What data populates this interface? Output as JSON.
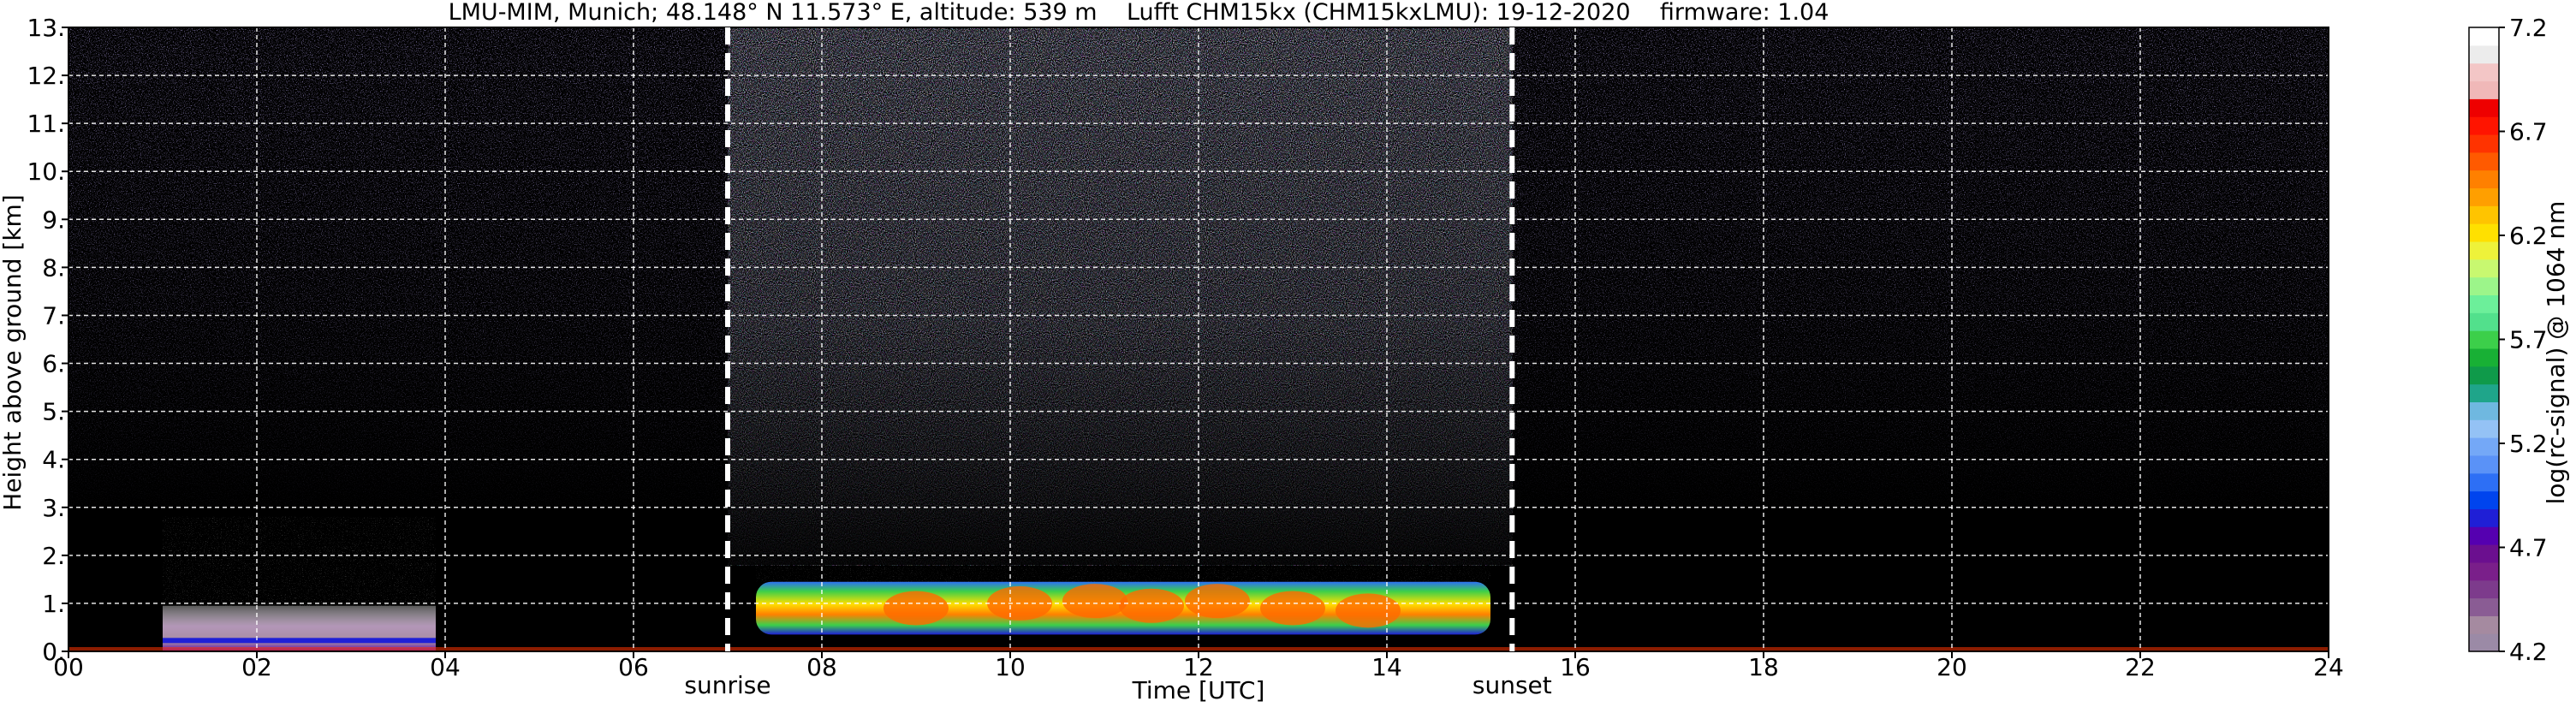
{
  "chart_data": {
    "type": "heatmap",
    "title": "LMU-MIM, Munich; 48.148° N 11.573° E, altitude: 539 m    Lufft CHM15kx (CHM15kxLMU): 19-12-2020    firmware: 1.04",
    "xlabel": "Time [UTC]",
    "ylabel": "Height above ground [km]",
    "xlim": [
      0,
      24
    ],
    "ylim": [
      0,
      13
    ],
    "x_ticks": [
      "00",
      "02",
      "04",
      "06",
      "08",
      "10",
      "12",
      "14",
      "16",
      "18",
      "20",
      "22",
      "24"
    ],
    "y_ticks": [
      "0.",
      "1.",
      "2.",
      "3.",
      "4.",
      "5.",
      "6.",
      "7.",
      "8.",
      "9.",
      "10.",
      "11.",
      "12.",
      "13."
    ],
    "grid": true,
    "colorbar": {
      "label": "log(rc-signal) @ 1064 nm",
      "range": [
        4.2,
        7.2
      ],
      "ticks": [
        "4.2",
        "4.7",
        "5.2",
        "5.7",
        "6.2",
        "6.7",
        "7.2"
      ],
      "colors": [
        "#9b8aa6",
        "#a58aa0",
        "#8a5c94",
        "#7d3b8c",
        "#7a1f8a",
        "#6b0f8f",
        "#5500b0",
        "#1f1fd6",
        "#0044ee",
        "#2d6ff5",
        "#5a92f7",
        "#74a8f7",
        "#94c2f5",
        "#6fb8e0",
        "#1fa58a",
        "#0f9a4a",
        "#18b035",
        "#3ccf4a",
        "#52e08c",
        "#6cef9a",
        "#9cf58a",
        "#c8f870",
        "#eef23a",
        "#ffe000",
        "#ffc400",
        "#ff9f00",
        "#ff8000",
        "#ff5a00",
        "#ff3300",
        "#ff1400",
        "#ee0000",
        "#f0b8b8",
        "#f3c6c6",
        "#ececec",
        "#ffffff"
      ]
    },
    "annotations": [
      {
        "text": "sunrise",
        "x": 7.0
      },
      {
        "text": "sunset",
        "x": 15.33
      }
    ],
    "signal_regions": [
      {
        "name": "night boundary layer",
        "x": [
          1.0,
          3.9
        ],
        "y": [
          0.0,
          0.95
        ],
        "level": 4.4
      },
      {
        "name": "daytime boundary layer",
        "x": [
          7.3,
          15.1
        ],
        "y": [
          0.3,
          1.8
        ],
        "level": 5.8
      },
      {
        "name": "daytime background noise",
        "x": [
          7.0,
          15.33
        ],
        "y": [
          1.8,
          13.0
        ],
        "level": 4.5
      }
    ]
  }
}
